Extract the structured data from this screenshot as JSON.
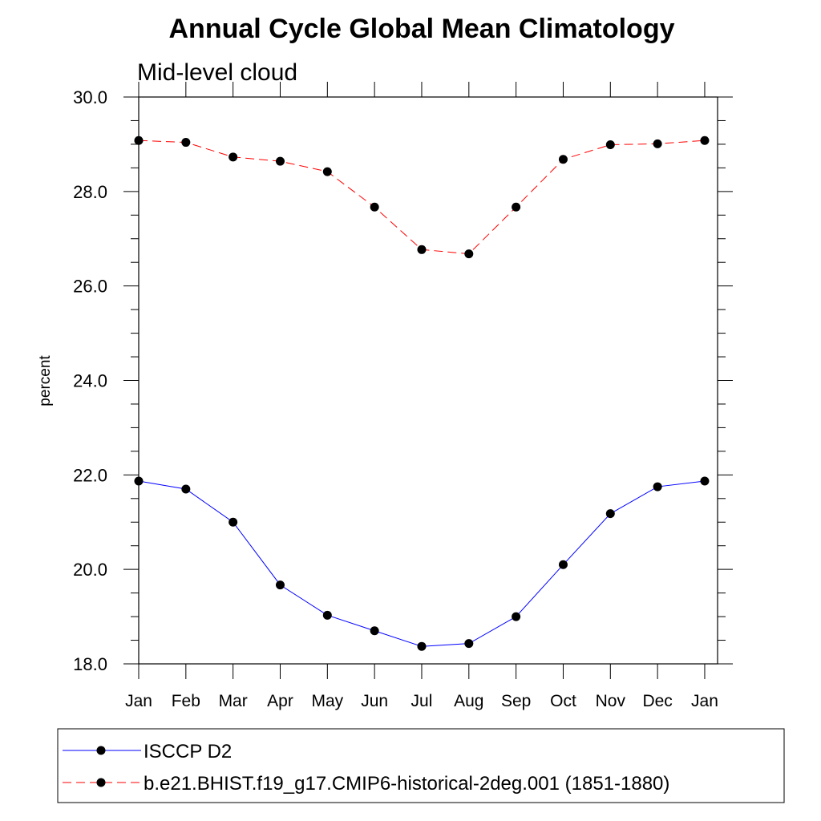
{
  "chart_data": {
    "type": "line",
    "title": "Annual Cycle Global Mean Climatology",
    "subtitle": "Mid-level cloud",
    "ylabel": "percent",
    "xlabel": "",
    "ylim": [
      18.0,
      30.0
    ],
    "yticks": [
      "18.0",
      "20.0",
      "22.0",
      "24.0",
      "26.0",
      "28.0",
      "30.0"
    ],
    "yminor_step": 0.5,
    "categories": [
      "Jan",
      "Feb",
      "Mar",
      "Apr",
      "May",
      "Jun",
      "Jul",
      "Aug",
      "Sep",
      "Oct",
      "Nov",
      "Dec",
      "Jan"
    ],
    "grid": false,
    "legend_position": "bottom",
    "series": [
      {
        "name": "ISCCP D2",
        "color": "#0000ff",
        "dash": "solid",
        "marker": "filled-circle",
        "values": [
          21.87,
          21.7,
          21.0,
          19.67,
          19.03,
          18.7,
          18.37,
          18.43,
          19.0,
          20.1,
          21.18,
          21.75,
          21.87
        ]
      },
      {
        "name": "b.e21.BHIST.f19_g17.CMIP6-historical-2deg.001 (1851-1880)",
        "color": "#ff0000",
        "dash": "dashed",
        "marker": "filled-circle",
        "values": [
          29.08,
          29.04,
          28.73,
          28.64,
          28.42,
          27.67,
          26.77,
          26.68,
          27.67,
          28.68,
          28.99,
          29.01,
          29.08
        ]
      }
    ]
  }
}
